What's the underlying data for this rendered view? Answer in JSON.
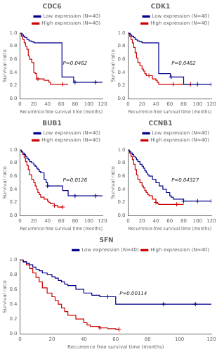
{
  "chart_data": [
    {
      "type": "line",
      "line_style": "steps",
      "title": "CDC6",
      "annotations": [
        "P=0.0462"
      ],
      "xlabel": "Recurrence-free survival time (months)",
      "ylabel": "Survival ratio",
      "xlim": [
        0,
        120
      ],
      "ylim": [
        0.0,
        1.0
      ],
      "xticks": [
        0,
        20,
        40,
        60,
        80,
        100,
        120
      ],
      "yticks": [
        {
          "value": 0.0,
          "label": "0.0"
        },
        0.2,
        0.4,
        0.6,
        0.8,
        {
          "value": 1.0,
          "label": "1.0"
        }
      ],
      "grid": false,
      "legend": "top",
      "series": [
        {
          "name": "Low expression (N=40)",
          "color": "#00008B",
          "x": [
            0,
            3,
            5,
            7,
            10,
            13,
            16,
            19,
            21,
            60,
            61,
            62,
            78,
            80,
            100,
            110,
            120
          ],
          "values": [
            1.0,
            0.97,
            0.95,
            0.93,
            0.9,
            0.88,
            0.87,
            0.86,
            0.85,
            0.85,
            0.33,
            0.33,
            0.25,
            0.25,
            0.25,
            0.25,
            0.25
          ],
          "censor_x": [
            80,
            110
          ],
          "censor_values": [
            0.25,
            0.25
          ]
        },
        {
          "name": "High expression (N=40)",
          "color": "#CC0000",
          "x": [
            0,
            2,
            4,
            6,
            8,
            10,
            12,
            14,
            17,
            20,
            22,
            24,
            26,
            28,
            30,
            35,
            40,
            42,
            44,
            60,
            61,
            62,
            65,
            70
          ],
          "values": [
            1.0,
            0.95,
            0.9,
            0.85,
            0.8,
            0.75,
            0.65,
            0.6,
            0.55,
            0.4,
            0.38,
            0.3,
            0.3,
            0.3,
            0.3,
            0.28,
            0.28,
            0.25,
            0.22,
            0.22,
            0.22,
            0.22,
            0.22,
            0.22
          ],
          "censor_x": [
            26,
            62
          ],
          "censor_values": [
            0.3,
            0.22
          ]
        }
      ]
    },
    {
      "type": "line",
      "line_style": "steps",
      "title": "CDK1",
      "annotations": [
        "P=0.0462"
      ],
      "xlabel": "Recurrence-free survival time (months)",
      "ylabel": "Survival ratio",
      "xlim": [
        0,
        120
      ],
      "ylim": [
        0.0,
        1.0
      ],
      "xticks": [
        0,
        20,
        40,
        60,
        80,
        100,
        120
      ],
      "yticks": [
        {
          "value": 0.0,
          "label": "0.0"
        },
        0.2,
        0.4,
        0.6,
        0.8,
        {
          "value": 1.0,
          "label": "1.0"
        }
      ],
      "grid": false,
      "legend": "top",
      "series": [
        {
          "name": "Low expression (N=40)",
          "color": "#00008B",
          "x": [
            0,
            3,
            5,
            8,
            10,
            13,
            16,
            19,
            21,
            40,
            42,
            44,
            60,
            61,
            62,
            80,
            100,
            110,
            120
          ],
          "values": [
            1.0,
            0.97,
            0.95,
            0.93,
            0.9,
            0.88,
            0.87,
            0.86,
            0.85,
            0.85,
            0.85,
            0.38,
            0.38,
            0.33,
            0.33,
            0.22,
            0.22,
            0.22,
            0.22
          ],
          "censor_x": [
            62,
            100,
            120
          ],
          "censor_values": [
            0.33,
            0.22,
            0.22
          ]
        },
        {
          "name": "High expression (N=40)",
          "color": "#CC0000",
          "x": [
            0,
            2,
            4,
            6,
            8,
            10,
            12,
            14,
            17,
            20,
            22,
            24,
            26,
            28,
            30,
            35,
            40,
            42,
            44,
            60,
            62,
            65,
            70,
            80,
            90
          ],
          "values": [
            1.0,
            0.95,
            0.9,
            0.85,
            0.78,
            0.7,
            0.62,
            0.55,
            0.5,
            0.45,
            0.42,
            0.38,
            0.35,
            0.35,
            0.35,
            0.3,
            0.28,
            0.25,
            0.22,
            0.22,
            0.22,
            0.22,
            0.22,
            0.22,
            0.22
          ],
          "censor_x": [
            30,
            65,
            90
          ],
          "censor_values": [
            0.35,
            0.22,
            0.22
          ]
        }
      ]
    },
    {
      "type": "line",
      "line_style": "steps",
      "title": "BUB1",
      "annotations": [
        "P=0.0126"
      ],
      "xlabel": "Recurrence-free survival time (months)",
      "ylabel": "Survival ratio",
      "xlim": [
        0,
        120
      ],
      "ylim": [
        0.0,
        1.0
      ],
      "xticks": [
        0,
        20,
        40,
        60,
        80,
        100,
        120
      ],
      "yticks": [
        {
          "value": 0.0,
          "label": "0.0"
        },
        0.2,
        0.4,
        0.6,
        0.8,
        {
          "value": 1.0,
          "label": "1.0"
        }
      ],
      "grid": false,
      "legend": "top",
      "series": [
        {
          "name": "Low expression (N=40)",
          "color": "#00008B",
          "x": [
            0,
            2,
            4,
            6,
            8,
            10,
            12,
            14,
            17,
            20,
            22,
            24,
            26,
            28,
            30,
            35,
            38,
            40,
            60,
            62,
            63,
            70,
            80,
            100,
            110,
            120
          ],
          "values": [
            1.0,
            0.97,
            0.95,
            0.93,
            0.9,
            0.87,
            0.85,
            0.82,
            0.8,
            0.77,
            0.75,
            0.72,
            0.7,
            0.67,
            0.65,
            0.55,
            0.5,
            0.45,
            0.45,
            0.38,
            0.38,
            0.3,
            0.3,
            0.3,
            0.3,
            0.3
          ],
          "censor_x": [
            40,
            80,
            110
          ],
          "censor_values": [
            0.45,
            0.3,
            0.3
          ]
        },
        {
          "name": "High expression (N=40)",
          "color": "#CC0000",
          "x": [
            0,
            2,
            4,
            6,
            8,
            10,
            12,
            14,
            17,
            20,
            22,
            24,
            26,
            28,
            30,
            35,
            40,
            42,
            44,
            50,
            55,
            60,
            62
          ],
          "values": [
            1.0,
            0.97,
            0.93,
            0.88,
            0.82,
            0.76,
            0.7,
            0.62,
            0.55,
            0.5,
            0.45,
            0.4,
            0.35,
            0.32,
            0.28,
            0.25,
            0.22,
            0.2,
            0.18,
            0.15,
            0.13,
            0.13,
            0.13
          ],
          "censor_x": [
            50,
            62
          ],
          "censor_values": [
            0.15,
            0.13
          ]
        }
      ]
    },
    {
      "type": "line",
      "line_style": "steps",
      "title": "CCNB1",
      "annotations": [
        "P=0.04327"
      ],
      "xlabel": "Recurrence-free survival time (months)",
      "ylabel": "Survival ratio",
      "xlim": [
        0,
        120
      ],
      "ylim": [
        0.0,
        1.0
      ],
      "xticks": [
        0,
        20,
        40,
        60,
        80,
        100,
        120
      ],
      "yticks": [
        {
          "value": 0.0,
          "label": "0.0"
        },
        0.2,
        0.4,
        0.6,
        0.8,
        {
          "value": 1.0,
          "label": "1.0"
        }
      ],
      "grid": false,
      "legend": "top",
      "series": [
        {
          "name": "Low expression (N=40)",
          "color": "#00008B",
          "x": [
            0,
            2,
            4,
            6,
            8,
            10,
            12,
            14,
            17,
            20,
            22,
            24,
            26,
            28,
            30,
            35,
            40,
            45,
            50,
            55,
            60,
            62,
            65,
            80,
            100,
            110,
            120
          ],
          "values": [
            1.0,
            0.97,
            0.95,
            0.93,
            0.9,
            0.88,
            0.85,
            0.82,
            0.78,
            0.75,
            0.72,
            0.68,
            0.65,
            0.62,
            0.6,
            0.55,
            0.5,
            0.45,
            0.4,
            0.35,
            0.3,
            0.28,
            0.25,
            0.22,
            0.22,
            0.22,
            0.22
          ],
          "censor_x": [
            80,
            100,
            120
          ],
          "censor_values": [
            0.22,
            0.22,
            0.22
          ]
        },
        {
          "name": "High expression (N=40)",
          "color": "#CC0000",
          "x": [
            0,
            2,
            4,
            6,
            8,
            10,
            12,
            14,
            17,
            20,
            22,
            24,
            26,
            28,
            30,
            35,
            40,
            42,
            44,
            50,
            55,
            60,
            62,
            70,
            80
          ],
          "values": [
            1.0,
            0.95,
            0.9,
            0.85,
            0.78,
            0.7,
            0.62,
            0.55,
            0.5,
            0.45,
            0.42,
            0.38,
            0.35,
            0.32,
            0.3,
            0.25,
            0.2,
            0.18,
            0.17,
            0.17,
            0.17,
            0.17,
            0.17,
            0.17,
            0.17
          ],
          "censor_x": [
            40,
            70
          ],
          "censor_values": [
            0.2,
            0.17
          ]
        }
      ]
    },
    {
      "type": "line",
      "line_style": "steps",
      "title": "SFN",
      "annotations": [
        "P=0.00114"
      ],
      "xlabel": "Recurrence free survival time (months)",
      "ylabel": "Survival ratio",
      "xlim": [
        0,
        120
      ],
      "ylim": [
        0.0,
        1.0
      ],
      "xticks": [
        0,
        20,
        40,
        60,
        80,
        100,
        120
      ],
      "yticks": [
        {
          "value": 0.0,
          "label": "0.0"
        },
        0.2,
        0.4,
        0.6,
        0.8,
        {
          "value": 1.0,
          "label": "1.0"
        }
      ],
      "grid": false,
      "legend": "top",
      "series": [
        {
          "name": "Low expression (N=40)",
          "color": "#00008B",
          "x": [
            0,
            2,
            4,
            6,
            8,
            10,
            12,
            14,
            17,
            20,
            22,
            24,
            26,
            28,
            30,
            35,
            40,
            45,
            50,
            55,
            60,
            62,
            65,
            80,
            90,
            100,
            110,
            120
          ],
          "values": [
            1.0,
            0.97,
            0.95,
            0.93,
            0.9,
            0.87,
            0.85,
            0.82,
            0.8,
            0.77,
            0.75,
            0.72,
            0.7,
            0.67,
            0.65,
            0.6,
            0.55,
            0.52,
            0.5,
            0.5,
            0.4,
            0.4,
            0.4,
            0.4,
            0.4,
            0.4,
            0.4,
            0.4
          ],
          "censor_x": [
            55,
            90,
            110
          ],
          "censor_values": [
            0.5,
            0.4,
            0.4
          ]
        },
        {
          "name": "High expression (N=40)",
          "color": "#CC0000",
          "x": [
            0,
            2,
            4,
            6,
            8,
            10,
            12,
            14,
            17,
            20,
            22,
            24,
            26,
            28,
            30,
            35,
            40,
            42,
            44,
            50,
            55,
            60,
            62
          ],
          "values": [
            1.0,
            0.97,
            0.93,
            0.88,
            0.82,
            0.76,
            0.7,
            0.62,
            0.55,
            0.5,
            0.45,
            0.4,
            0.35,
            0.3,
            0.25,
            0.2,
            0.15,
            0.12,
            0.1,
            0.08,
            0.07,
            0.06,
            0.06
          ],
          "censor_x": [
            50,
            62
          ],
          "censor_values": [
            0.08,
            0.06
          ]
        }
      ]
    }
  ]
}
